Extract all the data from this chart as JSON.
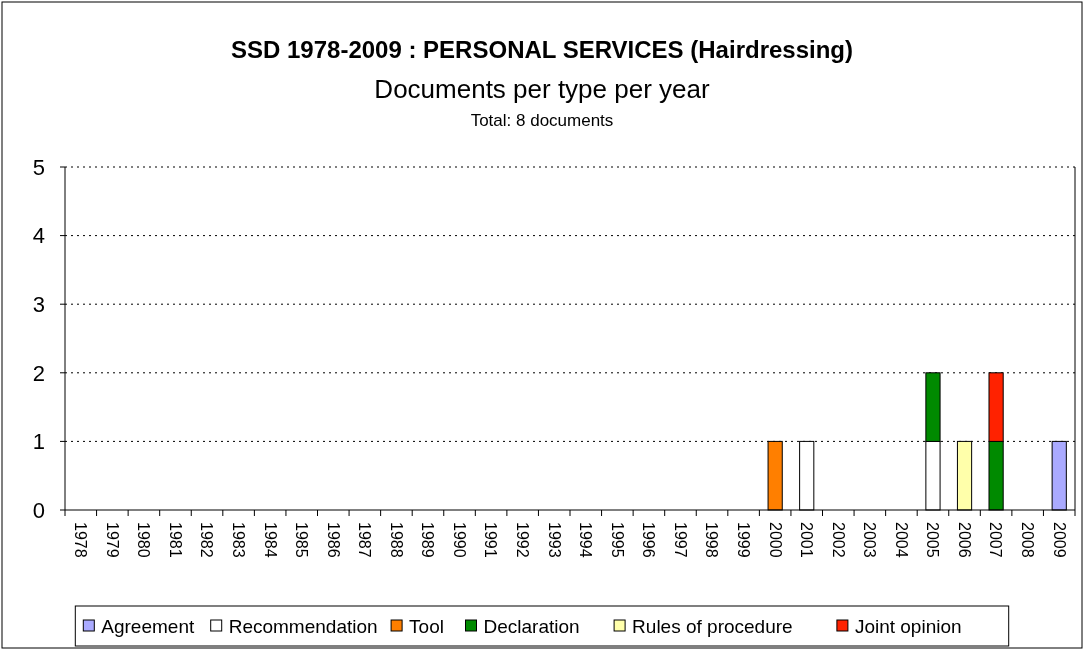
{
  "chart_data": {
    "type": "bar",
    "title": "SSD 1978-2009 : PERSONAL SERVICES (Hairdressing)",
    "subtitle": "Documents per type per year",
    "annotations": [
      "Total: 8 documents"
    ],
    "categories": [
      "1978",
      "1979",
      "1980",
      "1981",
      "1982",
      "1983",
      "1984",
      "1985",
      "1986",
      "1987",
      "1988",
      "1989",
      "1990",
      "1991",
      "1992",
      "1993",
      "1994",
      "1995",
      "1996",
      "1997",
      "1998",
      "1999",
      "2000",
      "2001",
      "2002",
      "2003",
      "2004",
      "2005",
      "2006",
      "2007",
      "2008",
      "2009"
    ],
    "stacked": true,
    "ylim": [
      0,
      5
    ],
    "yticks": [
      0,
      1,
      2,
      3,
      4,
      5
    ],
    "grid": "y",
    "legend": "bottom",
    "series": [
      {
        "name": "Agreement",
        "color": "#aaaaff",
        "values": [
          0,
          0,
          0,
          0,
          0,
          0,
          0,
          0,
          0,
          0,
          0,
          0,
          0,
          0,
          0,
          0,
          0,
          0,
          0,
          0,
          0,
          0,
          0,
          0,
          0,
          0,
          0,
          0,
          0,
          0,
          0,
          1
        ]
      },
      {
        "name": "Recommendation",
        "color": "#ffffff",
        "values": [
          0,
          0,
          0,
          0,
          0,
          0,
          0,
          0,
          0,
          0,
          0,
          0,
          0,
          0,
          0,
          0,
          0,
          0,
          0,
          0,
          0,
          0,
          0,
          1,
          0,
          0,
          0,
          1,
          0,
          0,
          0,
          0
        ]
      },
      {
        "name": "Tool",
        "color": "#ff7f00",
        "values": [
          0,
          0,
          0,
          0,
          0,
          0,
          0,
          0,
          0,
          0,
          0,
          0,
          0,
          0,
          0,
          0,
          0,
          0,
          0,
          0,
          0,
          0,
          1,
          0,
          0,
          0,
          0,
          0,
          0,
          0,
          0,
          0
        ]
      },
      {
        "name": "Declaration",
        "color": "#008a00",
        "values": [
          0,
          0,
          0,
          0,
          0,
          0,
          0,
          0,
          0,
          0,
          0,
          0,
          0,
          0,
          0,
          0,
          0,
          0,
          0,
          0,
          0,
          0,
          0,
          0,
          0,
          0,
          0,
          1,
          0,
          1,
          0,
          0
        ]
      },
      {
        "name": "Rules of procedure",
        "color": "#ffffaa",
        "values": [
          0,
          0,
          0,
          0,
          0,
          0,
          0,
          0,
          0,
          0,
          0,
          0,
          0,
          0,
          0,
          0,
          0,
          0,
          0,
          0,
          0,
          0,
          0,
          0,
          0,
          0,
          0,
          0,
          1,
          0,
          0,
          0
        ]
      },
      {
        "name": "Joint opinion",
        "color": "#ff2200",
        "values": [
          0,
          0,
          0,
          0,
          0,
          0,
          0,
          0,
          0,
          0,
          0,
          0,
          0,
          0,
          0,
          0,
          0,
          0,
          0,
          0,
          0,
          0,
          0,
          0,
          0,
          0,
          0,
          0,
          0,
          1,
          0,
          0
        ]
      }
    ]
  }
}
